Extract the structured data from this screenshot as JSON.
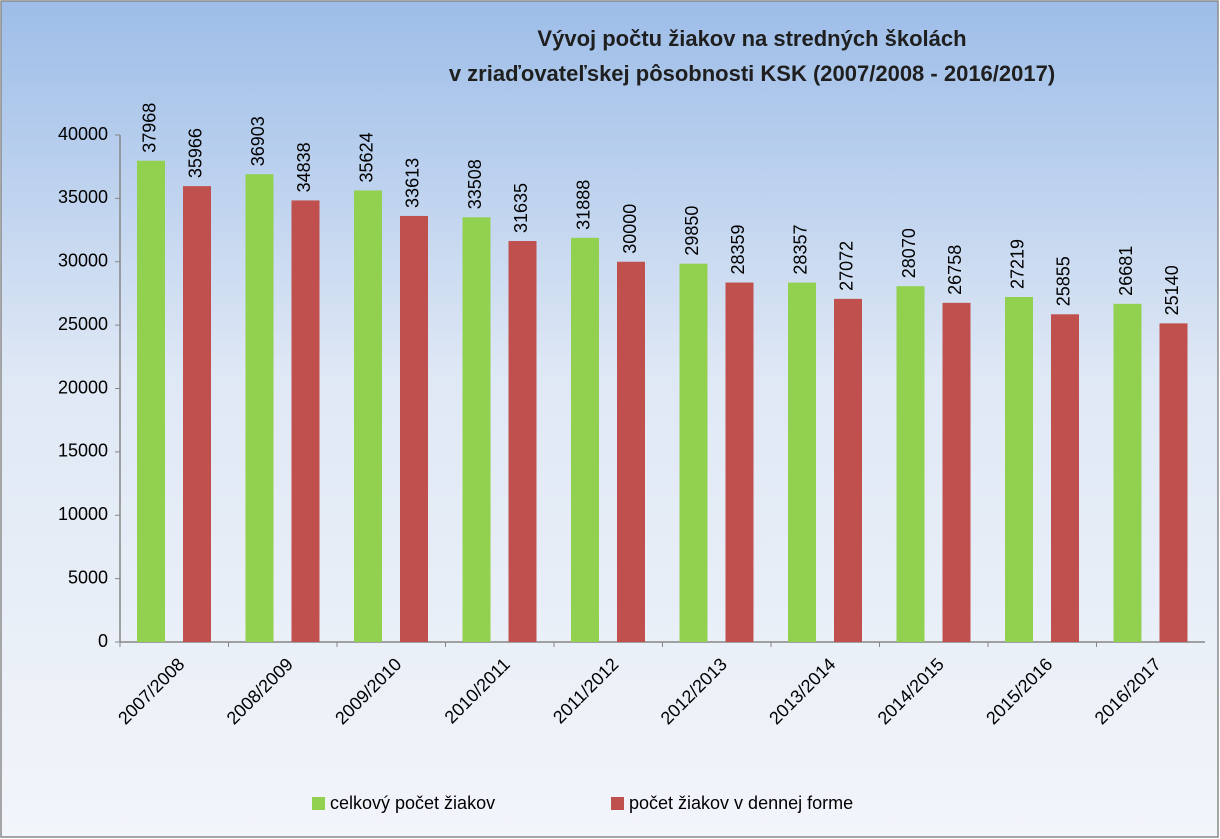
{
  "chart_data": {
    "type": "bar",
    "title": [
      "Vývoj počtu žiakov na stredných školách",
      "v zriaďovateľskej pôsobnosti  KSK (2007/2008 -  2016/2017)"
    ],
    "categories": [
      "2007/2008",
      "2008/2009",
      "2009/2010",
      "2010/2011",
      "2011/2012",
      "2012/2013",
      "2013/2014",
      "2014/2015",
      "2015/2016",
      "2016/2017"
    ],
    "series": [
      {
        "name": "celkový počet žiakov",
        "color": "#92d050",
        "values": [
          37968,
          36903,
          35624,
          33508,
          31888,
          29850,
          28357,
          28070,
          27219,
          26681
        ]
      },
      {
        "name": "počet žiakov v dennej forme",
        "color": "#c0504d",
        "values": [
          35966,
          34838,
          33613,
          31635,
          30000,
          28359,
          27072,
          26758,
          25855,
          25140
        ]
      }
    ],
    "ylim": [
      0,
      40000
    ],
    "yticks": [
      0,
      5000,
      10000,
      15000,
      20000,
      25000,
      30000,
      35000,
      40000
    ],
    "grid": false,
    "legend": "bottom"
  }
}
